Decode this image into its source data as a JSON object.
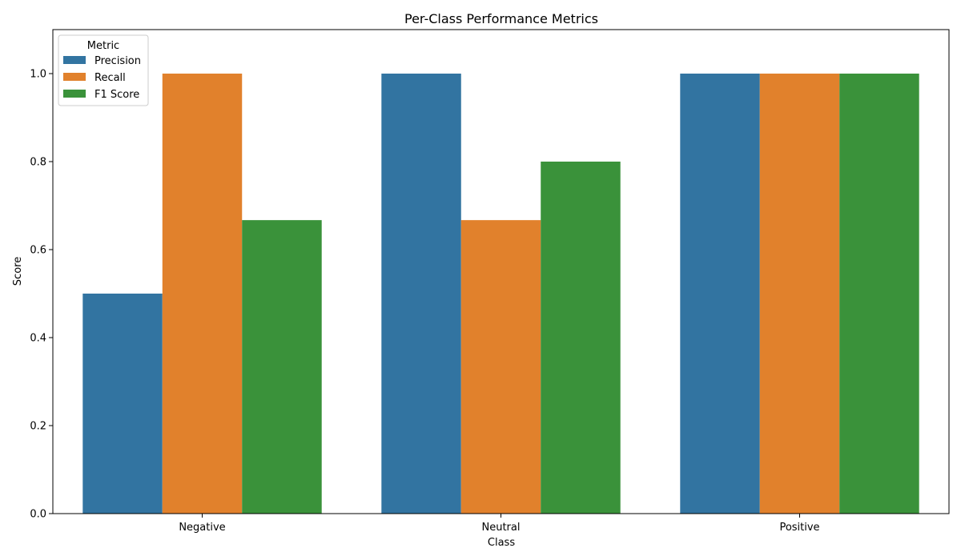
{
  "chart_data": {
    "type": "bar",
    "title": "Per-Class Performance Metrics",
    "xlabel": "Class",
    "ylabel": "Score",
    "categories": [
      "Negative",
      "Neutral",
      "Positive"
    ],
    "series": [
      {
        "name": "Precision",
        "color": "#3274a1",
        "values": [
          0.5,
          1.0,
          1.0
        ]
      },
      {
        "name": "Recall",
        "color": "#e1812c",
        "values": [
          1.0,
          0.667,
          1.0
        ]
      },
      {
        "name": "F1 Score",
        "color": "#3a923a",
        "values": [
          0.667,
          0.8,
          1.0
        ]
      }
    ],
    "ylim": [
      0,
      1.1
    ],
    "yticks": [
      0.0,
      0.2,
      0.4,
      0.6,
      0.8,
      1.0
    ],
    "ytick_labels": [
      "0.0",
      "0.2",
      "0.4",
      "0.6",
      "0.8",
      "1.0"
    ],
    "grid": false,
    "legend": {
      "title": "Metric",
      "placement": "top-left"
    }
  }
}
